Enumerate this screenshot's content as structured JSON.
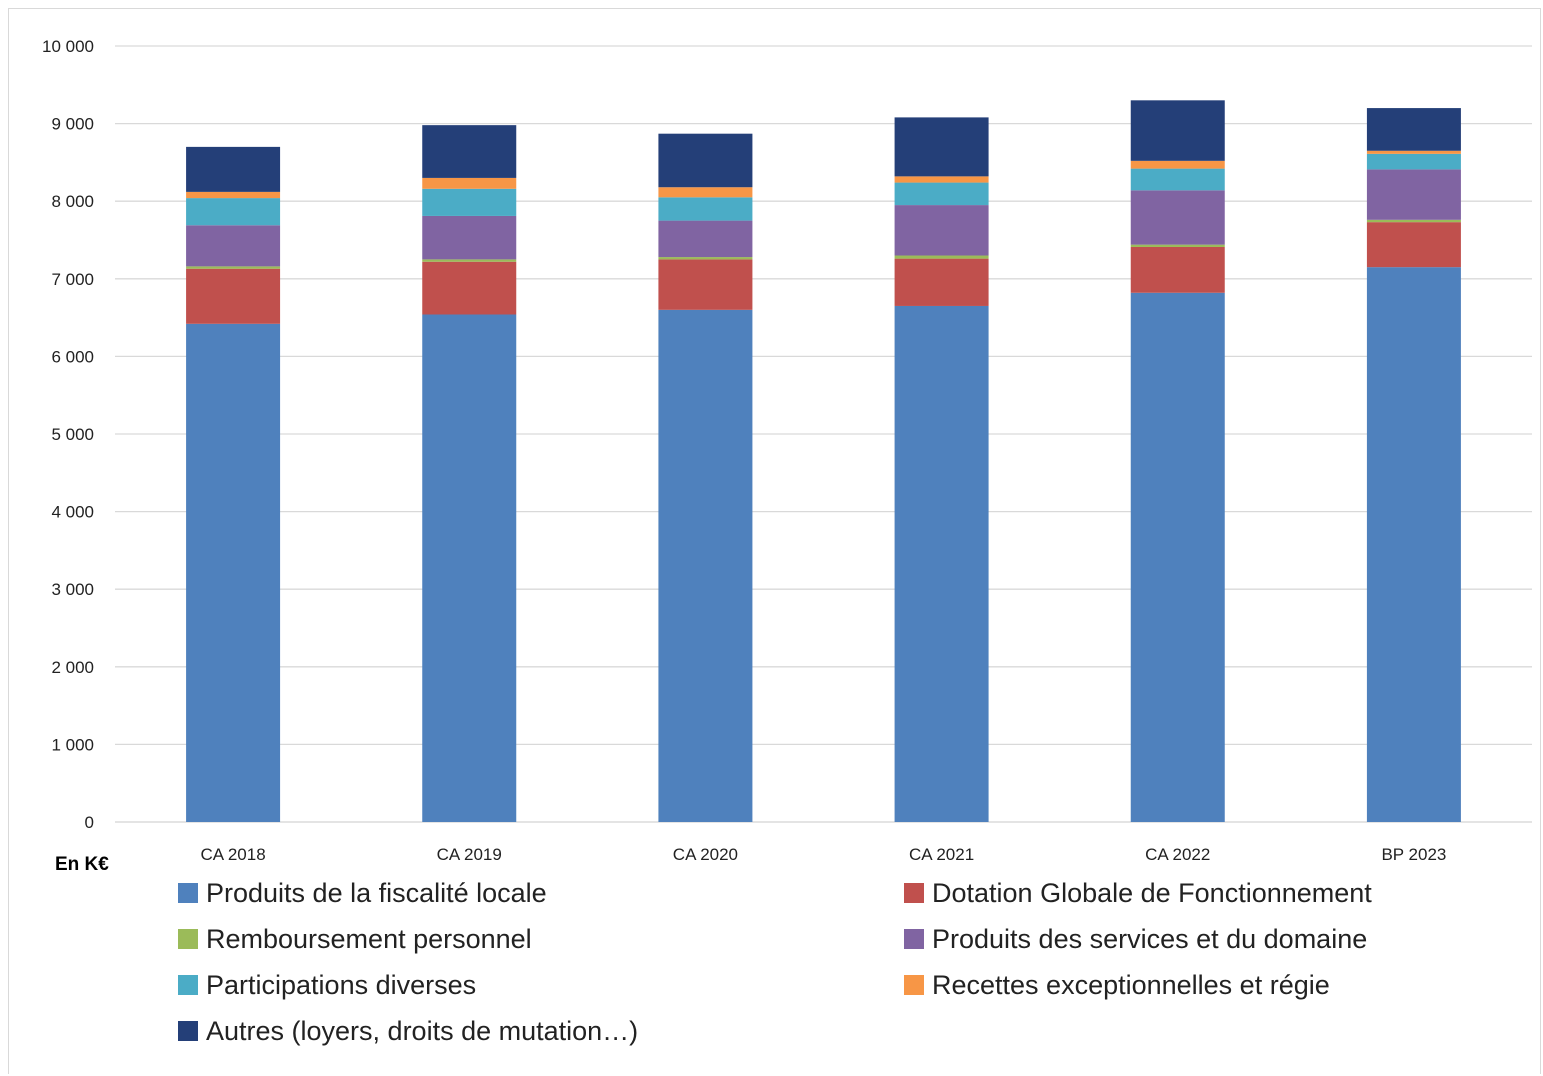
{
  "chart_data": {
    "type": "bar",
    "stacked": true,
    "unit_label": "En K€",
    "categories": [
      "CA 2018",
      "CA 2019",
      "CA 2020",
      "CA 2021",
      "CA 2022",
      "BP 2023"
    ],
    "ylim": [
      0,
      10000
    ],
    "yticks": [
      0,
      1000,
      2000,
      3000,
      4000,
      5000,
      6000,
      7000,
      8000,
      9000,
      10000
    ],
    "ytick_labels": [
      "0",
      "1 000",
      "2 000",
      "3 000",
      "4 000",
      "5 000",
      "6 000",
      "7 000",
      "8 000",
      "9 000",
      "10 000"
    ],
    "grid": true,
    "legend_position": "bottom",
    "series": [
      {
        "name": "Produits de la fiscalité locale",
        "color": "#4f81bd",
        "values": [
          6420,
          6540,
          6600,
          6650,
          6820,
          7150
        ]
      },
      {
        "name": "Dotation Globale de Fonctionnement",
        "color": "#c0504d",
        "values": [
          710,
          680,
          650,
          610,
          590,
          580
        ]
      },
      {
        "name": "Remboursement personnel",
        "color": "#9bbb59",
        "values": [
          30,
          30,
          30,
          40,
          30,
          30
        ]
      },
      {
        "name": "Produits des services et du domaine",
        "color": "#8064a2",
        "values": [
          530,
          560,
          470,
          650,
          700,
          650
        ]
      },
      {
        "name": "Participations diverses",
        "color": "#4bacc6",
        "values": [
          350,
          350,
          300,
          290,
          280,
          200
        ]
      },
      {
        "name": "Recettes exceptionnelles et régie",
        "color": "#f79646",
        "values": [
          80,
          140,
          130,
          80,
          100,
          40
        ]
      },
      {
        "name": "Autres (loyers, droits de mutation…)",
        "color": "#243f78",
        "values": [
          580,
          680,
          690,
          760,
          780,
          550
        ]
      }
    ]
  }
}
